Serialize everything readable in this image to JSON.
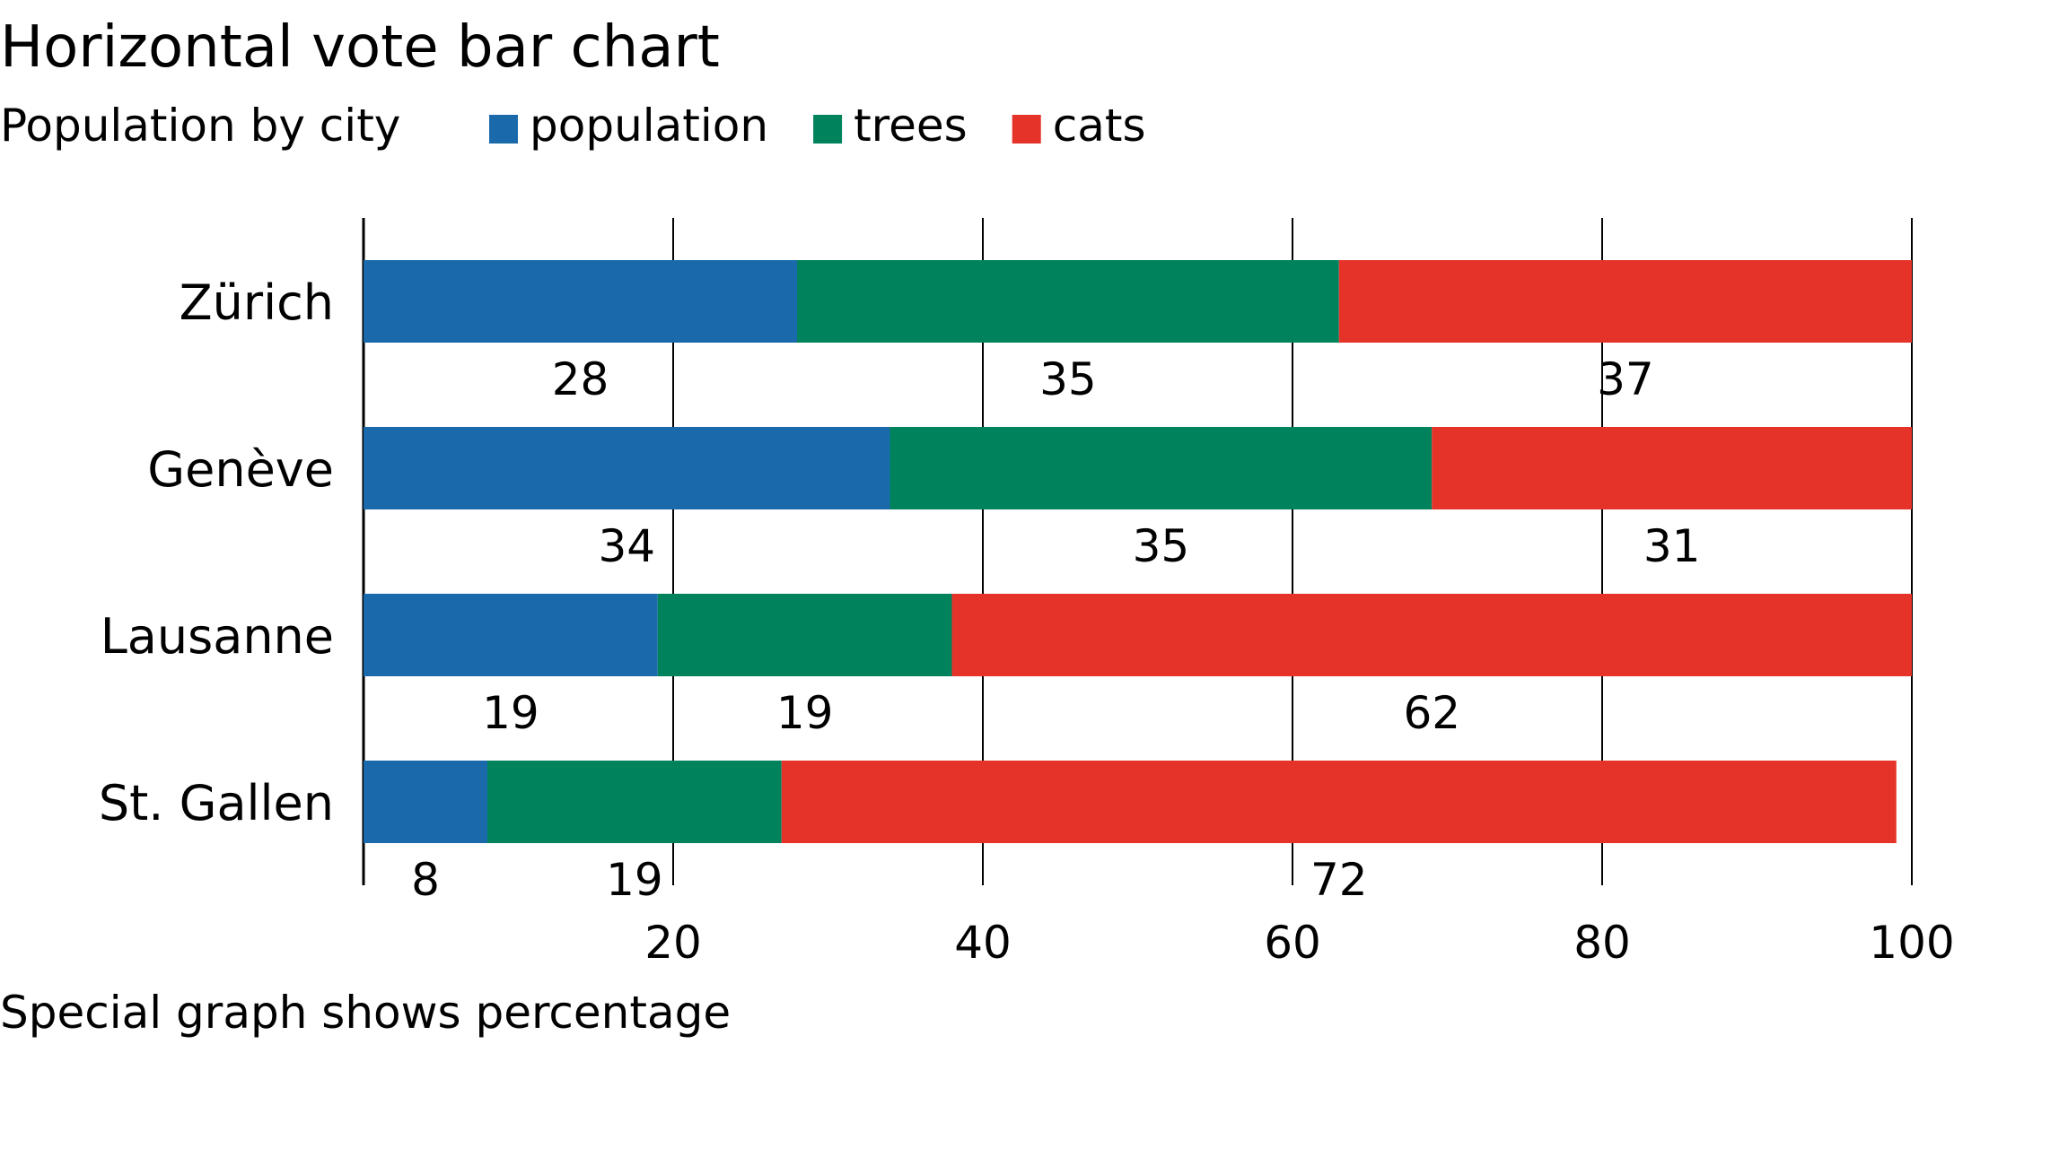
{
  "chart_data": {
    "type": "bar",
    "orientation": "horizontal",
    "stacked": true,
    "title": "Horizontal vote bar chart",
    "subtitle": "Population by city",
    "footnote": "Special graph shows percentage",
    "categories": [
      "Zürich",
      "Genève",
      "Lausanne",
      "St. Gallen"
    ],
    "series": [
      {
        "name": "population",
        "color": "#1a6aab",
        "values": [
          28,
          34,
          19,
          8
        ]
      },
      {
        "name": "trees",
        "color": "#00835c",
        "values": [
          35,
          35,
          19,
          19
        ]
      },
      {
        "name": "cats",
        "color": "#e6332a",
        "values": [
          37,
          31,
          62,
          72
        ]
      }
    ],
    "xlim": [
      0,
      100
    ],
    "xticks": [
      20,
      40,
      60,
      80,
      100
    ],
    "grid": true,
    "legend": "top",
    "xlabel": "",
    "ylabel": ""
  }
}
